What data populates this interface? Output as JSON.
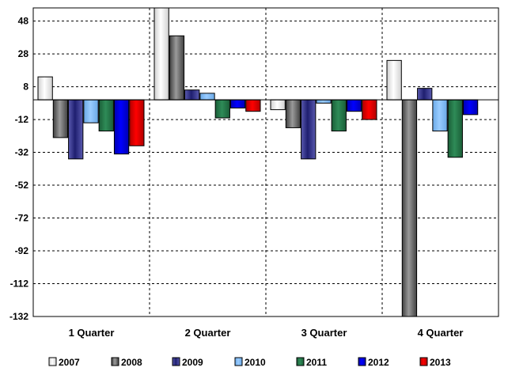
{
  "chart_data": {
    "type": "bar",
    "title": "",
    "xlabel": "",
    "ylabel": "",
    "ylim": [
      -132,
      56
    ],
    "yticks": [
      48,
      28,
      8,
      -12,
      -32,
      -52,
      -72,
      -92,
      -112,
      -132
    ],
    "grid": true,
    "legend_position": "bottom",
    "categories": [
      "1 Quarter",
      "2 Quarter",
      "3 Quarter",
      "4 Quarter"
    ],
    "series": [
      {
        "name": "2007",
        "color": "#ffffff",
        "shade": "#d0d0d0",
        "values": [
          14,
          56,
          -6,
          24
        ]
      },
      {
        "name": "2008",
        "color": "#9a9a9a",
        "shade": "#404040",
        "values": [
          -23,
          39,
          -17,
          -132
        ]
      },
      {
        "name": "2009",
        "color": "#1f1f70",
        "shade": "#5a5ab0",
        "values": [
          -36,
          6,
          -36,
          7
        ]
      },
      {
        "name": "2010",
        "color": "#99ccff",
        "shade": "#6aa8e6",
        "values": [
          -14,
          4,
          -2,
          -19
        ]
      },
      {
        "name": "2011",
        "color": "#2e8b57",
        "shade": "#1b5e38",
        "values": [
          -19,
          -11,
          -19,
          -35
        ]
      },
      {
        "name": "2012",
        "color": "#0000ff",
        "shade": "#0000b0",
        "values": [
          -33,
          -5,
          -7,
          -9
        ]
      },
      {
        "name": "2013",
        "color": "#ff0000",
        "shade": "#b00000",
        "values": [
          -28,
          -7,
          -12,
          0
        ]
      }
    ]
  }
}
